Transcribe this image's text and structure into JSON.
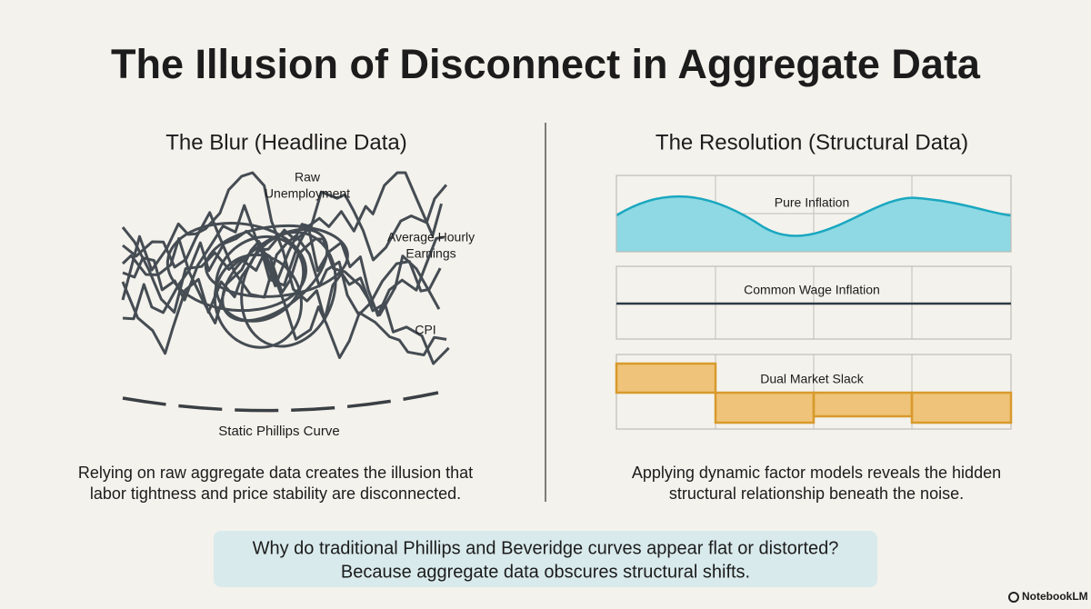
{
  "title": "The Illusion of Disconnect in Aggregate Data",
  "left": {
    "heading": "The Blur (Headline Data)",
    "labels": {
      "raw_unemployment": [
        "Raw",
        "Unemployment"
      ],
      "earnings": [
        "Average Hourly",
        "Earnings"
      ],
      "cpi": "CPI",
      "curve": "Static Phillips Curve"
    },
    "caption": [
      "Relying on raw aggregate data creates the illusion that",
      "labor tightness and price stability are disconnected."
    ]
  },
  "right": {
    "heading": "The Resolution (Structural Data)",
    "panels": [
      "Pure Inflation",
      "Common Wage Inflation",
      "Dual Market Slack"
    ],
    "caption": [
      "Applying dynamic factor models reveals the hidden",
      "structural relationship beneath the noise."
    ]
  },
  "callout": [
    "Why do traditional Phillips and Beveridge curves appear flat or distorted?",
    "Because aggregate data obscures structural shifts."
  ],
  "brand": "NotebookLM"
}
